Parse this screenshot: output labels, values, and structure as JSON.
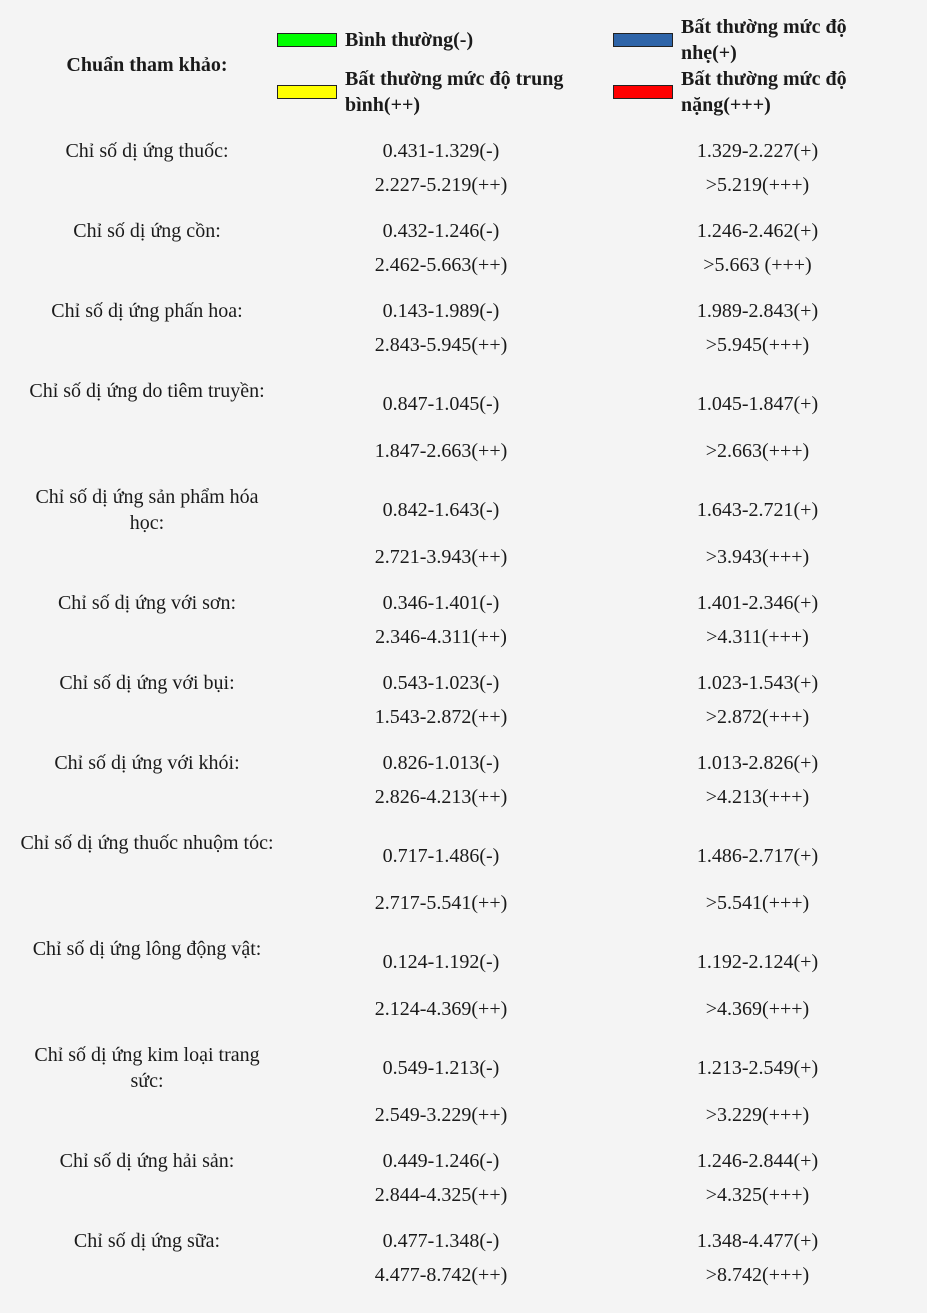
{
  "legend": {
    "title": "Chuẩn tham khảo:",
    "items": [
      {
        "label": "Bình thường(-)",
        "color": "#00ff00"
      },
      {
        "label": "Bất thường mức độ nhẹ(+)",
        "color": "#2e64a8"
      },
      {
        "label": "Bất thường mức độ trung bình(++)",
        "color": "#ffff00"
      },
      {
        "label": "Bất thường mức độ nặng(+++)",
        "color": "#ff0000"
      }
    ]
  },
  "items": [
    {
      "label": "Chỉ số dị ứng thuốc:",
      "normal": "0.431-1.329(-)",
      "mild": "1.329-2.227(+)",
      "moderate": "2.227-5.219(++)",
      "severe": ">5.219(+++)"
    },
    {
      "label": "Chỉ số dị ứng cồn:",
      "normal": "0.432-1.246(-)",
      "mild": "1.246-2.462(+)",
      "moderate": "2.462-5.663(++)",
      "severe": ">5.663 (+++)"
    },
    {
      "label": "Chỉ số dị ứng phấn hoa:",
      "normal": "0.143-1.989(-)",
      "mild": "1.989-2.843(+)",
      "moderate": "2.843-5.945(++)",
      "severe": ">5.945(+++)"
    },
    {
      "label": "Chỉ số dị ứng do tiêm truyền:",
      "normal": "0.847-1.045(-)",
      "mild": "1.045-1.847(+)",
      "moderate": "1.847-2.663(++)",
      "severe": ">2.663(+++)"
    },
    {
      "label": "Chỉ số dị ứng sản phẩm hóa học:",
      "normal": "0.842-1.643(-)",
      "mild": "1.643-2.721(+)",
      "moderate": "2.721-3.943(++)",
      "severe": ">3.943(+++)"
    },
    {
      "label": "Chỉ số dị ứng với sơn:",
      "normal": "0.346-1.401(-)",
      "mild": "1.401-2.346(+)",
      "moderate": "2.346-4.311(++)",
      "severe": ">4.311(+++)"
    },
    {
      "label": "Chỉ số dị ứng với bụi:",
      "normal": "0.543-1.023(-)",
      "mild": "1.023-1.543(+)",
      "moderate": "1.543-2.872(++)",
      "severe": ">2.872(+++)"
    },
    {
      "label": "Chỉ số dị ứng với khói:",
      "normal": "0.826-1.013(-)",
      "mild": "1.013-2.826(+)",
      "moderate": "2.826-4.213(++)",
      "severe": ">4.213(+++)"
    },
    {
      "label": "Chỉ số dị ứng thuốc nhuộm tóc:",
      "normal": "0.717-1.486(-)",
      "mild": "1.486-2.717(+)",
      "moderate": "2.717-5.541(++)",
      "severe": ">5.541(+++)"
    },
    {
      "label": "Chỉ số dị ứng lông động vật:",
      "normal": "0.124-1.192(-)",
      "mild": "1.192-2.124(+)",
      "moderate": "2.124-4.369(++)",
      "severe": ">4.369(+++)"
    },
    {
      "label": "Chỉ số dị ứng kim loại trang sức:",
      "normal": "0.549-1.213(-)",
      "mild": "1.213-2.549(+)",
      "moderate": "2.549-3.229(++)",
      "severe": ">3.229(+++)"
    },
    {
      "label": "Chỉ số dị ứng hải sản:",
      "normal": "0.449-1.246(-)",
      "mild": "1.246-2.844(+)",
      "moderate": "2.844-4.325(++)",
      "severe": ">4.325(+++)"
    },
    {
      "label": "Chỉ số dị ứng sữa:",
      "normal": "0.477-1.348(-)",
      "mild": "1.348-4.477(+)",
      "moderate": "4.477-8.742(++)",
      "severe": ">8.742(+++)"
    }
  ]
}
